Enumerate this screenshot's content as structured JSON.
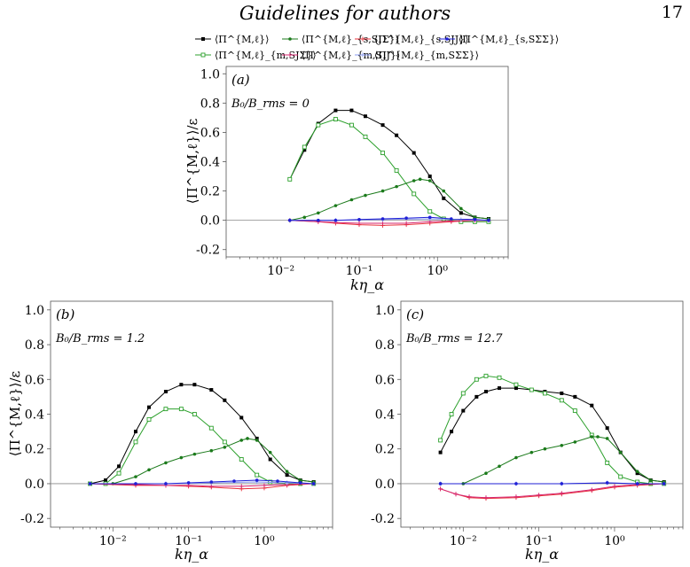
{
  "header": {
    "title": "Guidelines for authors",
    "page": "17"
  },
  "chart_data": [
    {
      "type": "line",
      "panel_label": "(a)",
      "annotation": "B₀/B_rms = 0",
      "xlabel": "kη_α",
      "ylabel": "⟨Π^{M,ℓ}⟩/ε",
      "xscale": "log",
      "xlim": [
        0.002,
        8
      ],
      "ylim": [
        -0.25,
        1.05
      ],
      "yticks": [
        "-0.2",
        "0.0",
        "0.2",
        "0.4",
        "0.6",
        "0.8",
        "1.0"
      ],
      "xticks": [
        "10⁻²",
        "10⁻¹",
        "10⁰"
      ],
      "series": [
        {
          "name": "⟨Π^{M,ℓ}⟩",
          "color": "#000000",
          "marker": "square",
          "x": [
            0.013,
            0.02,
            0.03,
            0.05,
            0.08,
            0.12,
            0.2,
            0.3,
            0.5,
            0.8,
            1.2,
            2,
            3,
            4.5
          ],
          "y": [
            0.28,
            0.48,
            0.66,
            0.75,
            0.75,
            0.71,
            0.65,
            0.58,
            0.46,
            0.3,
            0.15,
            0.05,
            0.02,
            0.01
          ]
        },
        {
          "name": "⟨Π^{M,ℓ}_{m,SJΣ}⟩",
          "color": "#2ca02c",
          "marker": "open-square",
          "x": [
            0.013,
            0.02,
            0.03,
            0.05,
            0.08,
            0.12,
            0.2,
            0.3,
            0.5,
            0.8,
            1.2,
            2,
            3,
            4.5
          ],
          "y": [
            0.28,
            0.5,
            0.65,
            0.69,
            0.65,
            0.57,
            0.46,
            0.34,
            0.18,
            0.06,
            0.01,
            -0.01,
            -0.01,
            -0.01
          ]
        },
        {
          "name": "⟨Π^{M,ℓ}_{s,SJΣ}⟩",
          "color": "#1b7a1b",
          "marker": "dot",
          "x": [
            0.013,
            0.02,
            0.03,
            0.05,
            0.08,
            0.12,
            0.2,
            0.3,
            0.5,
            0.6,
            0.8,
            1.2,
            2,
            3,
            4.5
          ],
          "y": [
            0.0,
            0.02,
            0.05,
            0.1,
            0.14,
            0.17,
            0.2,
            0.23,
            0.27,
            0.28,
            0.27,
            0.2,
            0.08,
            0.02,
            0.01
          ]
        },
        {
          "name": "⟨Π^{M,ℓ}_{s,SJJ}⟩",
          "color": "#e8313b",
          "marker": "plus",
          "x": [
            0.013,
            0.03,
            0.05,
            0.1,
            0.2,
            0.4,
            0.8,
            1.5,
            3,
            4.5
          ],
          "y": [
            0.0,
            -0.01,
            -0.02,
            -0.03,
            -0.035,
            -0.03,
            -0.02,
            -0.01,
            0.0,
            0.0
          ]
        },
        {
          "name": "⟨Π^{M,ℓ}_{m,SJJ}⟩",
          "color": "#d6246e",
          "marker": "plus",
          "x": [
            0.013,
            0.03,
            0.05,
            0.1,
            0.2,
            0.4,
            0.8,
            1.5,
            3,
            4.5
          ],
          "y": [
            0.0,
            -0.01,
            -0.015,
            -0.02,
            -0.02,
            -0.02,
            -0.01,
            -0.005,
            0.0,
            0.0
          ]
        },
        {
          "name": "⟨Π^{M,ℓ}_{m,SΣΣ}⟩",
          "color": "#8a9bf0",
          "marker": "plus",
          "x": [
            0.013,
            0.05,
            0.2,
            0.8,
            2,
            4.5
          ],
          "y": [
            0.0,
            0.0,
            0.005,
            0.01,
            0.005,
            0.0
          ]
        },
        {
          "name": "⟨Π^{M,ℓ}_{s,SΣΣ}⟩",
          "color": "#1f1fd6",
          "marker": "dot",
          "x": [
            0.013,
            0.03,
            0.05,
            0.1,
            0.2,
            0.4,
            0.8,
            1.5,
            3,
            4.5
          ],
          "y": [
            0.0,
            0.0,
            0.0,
            0.005,
            0.01,
            0.015,
            0.02,
            0.01,
            0.005,
            0.0
          ]
        }
      ]
    },
    {
      "type": "line",
      "panel_label": "(b)",
      "annotation": "B₀/B_rms = 1.2",
      "xlabel": "kη_α",
      "ylabel": "⟨Π^{M,ℓ}⟩/ε",
      "xscale": "log",
      "xlim": [
        0.0015,
        8
      ],
      "ylim": [
        -0.25,
        1.05
      ],
      "yticks": [
        "-0.2",
        "0.0",
        "0.2",
        "0.4",
        "0.6",
        "0.8",
        "1.0"
      ],
      "xticks": [
        "10⁻²",
        "10⁻¹",
        "10⁰"
      ],
      "series": [
        {
          "name": "⟨Π^{M,ℓ}⟩",
          "color": "#000000",
          "marker": "square",
          "x": [
            0.005,
            0.008,
            0.012,
            0.02,
            0.03,
            0.05,
            0.08,
            0.12,
            0.2,
            0.3,
            0.5,
            0.8,
            1.2,
            2,
            3,
            4.5
          ],
          "y": [
            0.0,
            0.02,
            0.1,
            0.3,
            0.44,
            0.53,
            0.57,
            0.57,
            0.54,
            0.48,
            0.38,
            0.26,
            0.14,
            0.05,
            0.02,
            0.01
          ]
        },
        {
          "name": "⟨Π^{M,ℓ}_{m,SJΣ}⟩",
          "color": "#2ca02c",
          "marker": "open-square",
          "x": [
            0.005,
            0.008,
            0.012,
            0.02,
            0.03,
            0.05,
            0.08,
            0.12,
            0.2,
            0.3,
            0.5,
            0.8,
            1.2,
            2,
            3,
            4.5
          ],
          "y": [
            0.0,
            0.0,
            0.06,
            0.24,
            0.37,
            0.43,
            0.43,
            0.4,
            0.32,
            0.24,
            0.14,
            0.05,
            0.01,
            0.0,
            0.0,
            0.0
          ]
        },
        {
          "name": "⟨Π^{M,ℓ}_{s,SJΣ}⟩",
          "color": "#1b7a1b",
          "marker": "dot",
          "x": [
            0.005,
            0.01,
            0.02,
            0.03,
            0.05,
            0.08,
            0.12,
            0.2,
            0.3,
            0.5,
            0.6,
            0.8,
            1.2,
            2,
            3,
            4.5
          ],
          "y": [
            0.0,
            0.0,
            0.04,
            0.08,
            0.12,
            0.15,
            0.17,
            0.19,
            0.21,
            0.25,
            0.26,
            0.25,
            0.18,
            0.07,
            0.02,
            0.01
          ]
        },
        {
          "name": "⟨Π^{M,ℓ}_{s,SJJ}⟩",
          "color": "#e8313b",
          "marker": "plus",
          "x": [
            0.005,
            0.02,
            0.05,
            0.1,
            0.2,
            0.5,
            1,
            2,
            4.5
          ],
          "y": [
            0.0,
            -0.01,
            -0.01,
            -0.015,
            -0.02,
            -0.03,
            -0.025,
            -0.01,
            0.0
          ]
        },
        {
          "name": "⟨Π^{M,ℓ}_{m,SJJ}⟩",
          "color": "#d6246e",
          "marker": "plus",
          "x": [
            0.005,
            0.02,
            0.05,
            0.1,
            0.2,
            0.5,
            1,
            2,
            4.5
          ],
          "y": [
            0.0,
            -0.005,
            -0.01,
            -0.01,
            -0.015,
            -0.015,
            -0.01,
            -0.005,
            0.0
          ]
        },
        {
          "name": "⟨Π^{M,ℓ}_{m,SΣΣ}⟩",
          "color": "#8a9bf0",
          "marker": "plus",
          "x": [
            0.005,
            0.05,
            0.2,
            0.8,
            2,
            4.5
          ],
          "y": [
            0.0,
            0.0,
            0.005,
            0.01,
            0.005,
            0.0
          ]
        },
        {
          "name": "⟨Π^{M,ℓ}_{s,SΣΣ}⟩",
          "color": "#1f1fd6",
          "marker": "dot",
          "x": [
            0.005,
            0.02,
            0.05,
            0.1,
            0.2,
            0.4,
            0.8,
            1.5,
            3,
            4.5
          ],
          "y": [
            0.0,
            0.0,
            0.0,
            0.005,
            0.01,
            0.015,
            0.02,
            0.015,
            0.005,
            0.0
          ]
        }
      ]
    },
    {
      "type": "line",
      "panel_label": "(c)",
      "annotation": "B₀/B_rms = 12.7",
      "xlabel": "kη_α",
      "ylabel": "",
      "xscale": "log",
      "xlim": [
        0.0015,
        8
      ],
      "ylim": [
        -0.25,
        1.05
      ],
      "yticks": [
        "-0.2",
        "0.0",
        "0.2",
        "0.4",
        "0.6",
        "0.8",
        "1.0"
      ],
      "xticks": [
        "10⁻²",
        "10⁻¹",
        "10⁰"
      ],
      "series": [
        {
          "name": "⟨Π^{M,ℓ}⟩",
          "color": "#000000",
          "marker": "square",
          "x": [
            0.005,
            0.007,
            0.01,
            0.015,
            0.02,
            0.03,
            0.05,
            0.08,
            0.12,
            0.2,
            0.3,
            0.5,
            0.8,
            1.2,
            2,
            3,
            4.5
          ],
          "y": [
            0.18,
            0.3,
            0.42,
            0.5,
            0.53,
            0.55,
            0.55,
            0.54,
            0.53,
            0.52,
            0.5,
            0.45,
            0.32,
            0.18,
            0.06,
            0.02,
            0.01
          ]
        },
        {
          "name": "⟨Π^{M,ℓ}_{m,SJΣ}⟩",
          "color": "#2ca02c",
          "marker": "open-square",
          "x": [
            0.005,
            0.007,
            0.01,
            0.015,
            0.02,
            0.03,
            0.05,
            0.08,
            0.12,
            0.2,
            0.3,
            0.5,
            0.8,
            1.2,
            2,
            3,
            4.5
          ],
          "y": [
            0.25,
            0.4,
            0.52,
            0.6,
            0.62,
            0.61,
            0.57,
            0.54,
            0.52,
            0.48,
            0.42,
            0.28,
            0.12,
            0.04,
            0.01,
            0.0,
            0.0
          ]
        },
        {
          "name": "⟨Π^{M,ℓ}_{s,SJΣ}⟩",
          "color": "#1b7a1b",
          "marker": "dot",
          "x": [
            0.005,
            0.01,
            0.02,
            0.03,
            0.05,
            0.08,
            0.12,
            0.2,
            0.3,
            0.5,
            0.6,
            0.8,
            1.2,
            2,
            3,
            4.5
          ],
          "y": [
            0.0,
            0.0,
            0.06,
            0.1,
            0.15,
            0.18,
            0.2,
            0.22,
            0.24,
            0.27,
            0.27,
            0.26,
            0.18,
            0.07,
            0.02,
            0.01
          ]
        },
        {
          "name": "⟨Π^{M,ℓ}_{s,SJJ}⟩",
          "color": "#e8313b",
          "marker": "plus",
          "x": [
            0.005,
            0.008,
            0.012,
            0.02,
            0.05,
            0.1,
            0.2,
            0.5,
            1,
            2,
            4.5
          ],
          "y": [
            -0.03,
            -0.06,
            -0.08,
            -0.085,
            -0.08,
            -0.07,
            -0.06,
            -0.04,
            -0.02,
            -0.01,
            0.0
          ]
        },
        {
          "name": "⟨Π^{M,ℓ}_{m,SJJ}⟩",
          "color": "#d6246e",
          "marker": "plus",
          "x": [
            0.005,
            0.008,
            0.012,
            0.02,
            0.05,
            0.1,
            0.2,
            0.5,
            1,
            2,
            4.5
          ],
          "y": [
            -0.03,
            -0.06,
            -0.075,
            -0.08,
            -0.075,
            -0.065,
            -0.055,
            -0.035,
            -0.015,
            -0.005,
            0.0
          ]
        },
        {
          "name": "⟨Π^{M,ℓ}_{m,SΣΣ}⟩",
          "color": "#8a9bf0",
          "marker": "plus",
          "x": [
            0.005,
            0.05,
            0.2,
            0.8,
            2,
            4.5
          ],
          "y": [
            0.0,
            0.0,
            0.0,
            0.005,
            0.0,
            0.0
          ]
        },
        {
          "name": "⟨Π^{M,ℓ}_{s,SΣΣ}⟩",
          "color": "#1f1fd6",
          "marker": "dot",
          "x": [
            0.005,
            0.05,
            0.2,
            0.8,
            2,
            4.5
          ],
          "y": [
            0.0,
            0.0,
            0.0,
            0.005,
            0.0,
            0.0
          ]
        }
      ]
    }
  ]
}
